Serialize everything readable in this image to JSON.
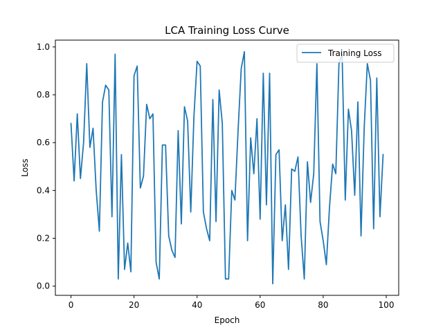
{
  "chart_data": {
    "type": "line",
    "title": "LCA Training Loss Curve",
    "xlabel": "Epoch",
    "ylabel": "Loss",
    "xlim": [
      -4.95,
      103.95
    ],
    "ylim": [
      -0.0385,
      1.0285
    ],
    "xticks": [
      0,
      20,
      40,
      60,
      80,
      100
    ],
    "yticks": [
      0.0,
      0.2,
      0.4,
      0.6,
      0.8,
      1.0
    ],
    "xtick_labels": [
      "0",
      "20",
      "40",
      "60",
      "80",
      "100"
    ],
    "ytick_labels": [
      "0.0",
      "0.2",
      "0.4",
      "0.6",
      "0.8",
      "1.0"
    ],
    "grid": false,
    "legend_position": "top-right",
    "series": [
      {
        "name": "Training Loss",
        "color": "#1f77b4",
        "x": [
          0,
          1,
          2,
          3,
          4,
          5,
          6,
          7,
          8,
          9,
          10,
          11,
          12,
          13,
          14,
          15,
          16,
          17,
          18,
          19,
          20,
          21,
          22,
          23,
          24,
          25,
          26,
          27,
          28,
          29,
          30,
          31,
          32,
          33,
          34,
          35,
          36,
          37,
          38,
          39,
          40,
          41,
          42,
          43,
          44,
          45,
          46,
          47,
          48,
          49,
          50,
          51,
          52,
          53,
          54,
          55,
          56,
          57,
          58,
          59,
          60,
          61,
          62,
          63,
          64,
          65,
          66,
          67,
          68,
          69,
          70,
          71,
          72,
          73,
          74,
          75,
          76,
          77,
          78,
          79,
          80,
          81,
          82,
          83,
          84,
          85,
          86,
          87,
          88,
          89,
          90,
          91,
          92,
          93,
          94,
          95,
          96,
          97,
          98,
          99
        ],
        "values": [
          0.68,
          0.44,
          0.72,
          0.45,
          0.6,
          0.93,
          0.58,
          0.66,
          0.4,
          0.23,
          0.77,
          0.84,
          0.82,
          0.29,
          0.97,
          0.03,
          0.55,
          0.07,
          0.18,
          0.06,
          0.88,
          0.92,
          0.41,
          0.46,
          0.76,
          0.7,
          0.72,
          0.1,
          0.03,
          0.59,
          0.59,
          0.21,
          0.15,
          0.12,
          0.65,
          0.26,
          0.75,
          0.69,
          0.31,
          0.71,
          0.94,
          0.92,
          0.31,
          0.24,
          0.19,
          0.78,
          0.27,
          0.82,
          0.68,
          0.03,
          0.03,
          0.4,
          0.36,
          0.65,
          0.91,
          0.98,
          0.19,
          0.62,
          0.47,
          0.7,
          0.28,
          0.89,
          0.34,
          0.89,
          0.01,
          0.55,
          0.57,
          0.19,
          0.34,
          0.07,
          0.49,
          0.48,
          0.54,
          0.21,
          0.03,
          0.52,
          0.35,
          0.47,
          0.93,
          0.27,
          0.19,
          0.09,
          0.33,
          0.51,
          0.47,
          0.93,
          0.97,
          0.36,
          0.74,
          0.65,
          0.38,
          0.77,
          0.21,
          0.66,
          0.93,
          0.86,
          0.24,
          0.87,
          0.29,
          0.55
        ]
      }
    ]
  }
}
